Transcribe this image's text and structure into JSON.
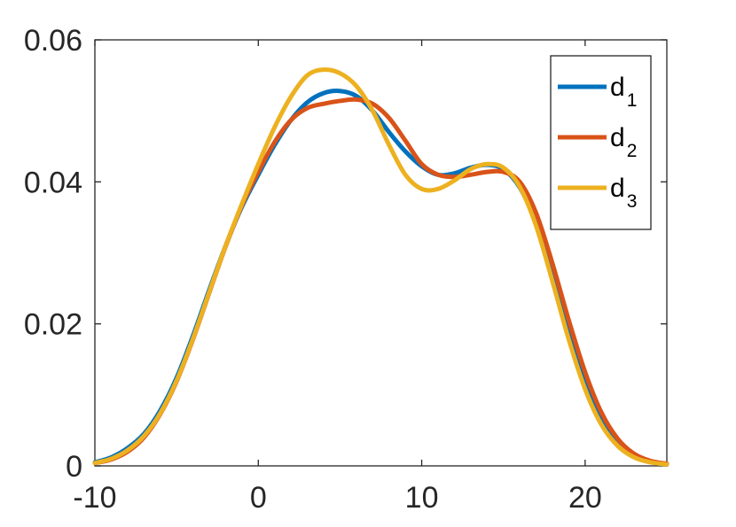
{
  "chart_data": {
    "type": "line",
    "title": "",
    "xlabel": "",
    "ylabel": "",
    "xlim": [
      -10,
      25
    ],
    "ylim": [
      0,
      0.06
    ],
    "x_ticks": [
      -10,
      0,
      10,
      20
    ],
    "x_tick_labels": [
      "-10",
      "0",
      "10",
      "20"
    ],
    "y_ticks": [
      0,
      0.02,
      0.04,
      0.06
    ],
    "y_tick_labels": [
      "0",
      "0.02",
      "0.04",
      "0.06"
    ],
    "grid": false,
    "legend_position": "top-right",
    "x": [
      -10,
      -9,
      -8,
      -7,
      -6,
      -5,
      -4,
      -3,
      -2,
      -1,
      0,
      1,
      2,
      3,
      4,
      5,
      6,
      7,
      8,
      9,
      10,
      11,
      12,
      13,
      14,
      15,
      16,
      17,
      18,
      19,
      20,
      21,
      22,
      23,
      24,
      25
    ],
    "series": [
      {
        "name_main": "d",
        "name_sub": "1",
        "color": "#0072BD",
        "values": [
          0.0005,
          0.0012,
          0.0025,
          0.0045,
          0.0078,
          0.0124,
          0.0183,
          0.0248,
          0.031,
          0.0365,
          0.041,
          0.0452,
          0.0487,
          0.0512,
          0.0525,
          0.0528,
          0.0521,
          0.05,
          0.047,
          0.0443,
          0.0422,
          0.041,
          0.0412,
          0.042,
          0.0424,
          0.0418,
          0.0392,
          0.0342,
          0.027,
          0.019,
          0.012,
          0.0068,
          0.0034,
          0.0015,
          0.0006,
          0.0002
        ]
      },
      {
        "name_main": "d",
        "name_sub": "2",
        "color": "#D95319",
        "values": [
          0.0004,
          0.0009,
          0.002,
          0.004,
          0.0073,
          0.0119,
          0.0178,
          0.0244,
          0.0309,
          0.0367,
          0.0414,
          0.0456,
          0.0487,
          0.0504,
          0.051,
          0.0514,
          0.0516,
          0.051,
          0.049,
          0.0458,
          0.0425,
          0.041,
          0.0407,
          0.041,
          0.0414,
          0.0414,
          0.04,
          0.0356,
          0.0285,
          0.0205,
          0.0132,
          0.0075,
          0.0038,
          0.0017,
          0.0007,
          0.0003
        ]
      },
      {
        "name_main": "d",
        "name_sub": "3",
        "color": "#EDB120",
        "values": [
          0.0004,
          0.001,
          0.0022,
          0.0042,
          0.0074,
          0.012,
          0.0179,
          0.0245,
          0.031,
          0.0369,
          0.0425,
          0.0477,
          0.052,
          0.055,
          0.0558,
          0.0553,
          0.0535,
          0.05,
          0.0452,
          0.041,
          0.039,
          0.039,
          0.0402,
          0.0418,
          0.0425,
          0.042,
          0.0393,
          0.0338,
          0.026,
          0.0178,
          0.0108,
          0.0058,
          0.0028,
          0.0012,
          0.0005,
          0.0002
        ]
      }
    ]
  }
}
